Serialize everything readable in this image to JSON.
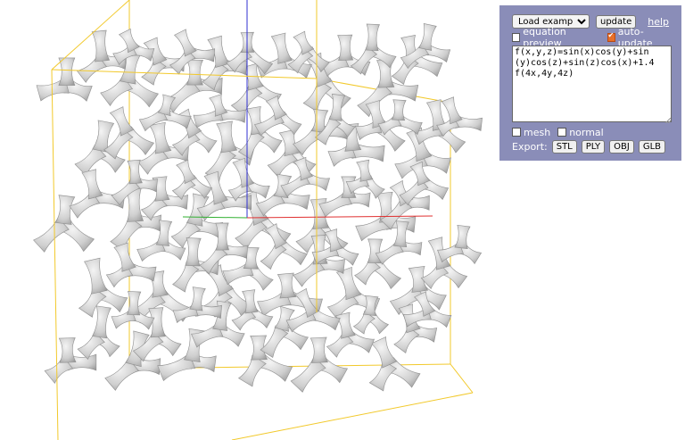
{
  "controls": {
    "load_select": "Load example...",
    "update_label": "update",
    "help_label": "help",
    "equation_preview_label": "equation preview",
    "equation_preview_checked": false,
    "auto_update_label": "auto-update",
    "auto_update_checked": true,
    "equation": "f(x,y,z)=sin(x)cos(y)+sin\n(y)cos(z)+sin(z)cos(x)+1.4\nf(4x,4y,4z)",
    "mesh_label": "mesh",
    "normal_label": "normal",
    "export_label": "Export:",
    "export_buttons": [
      "STL",
      "PLY",
      "OBJ",
      "GLB"
    ]
  },
  "colors": {
    "panel_bg": "#8a8db8",
    "bbox": "#f2c92b",
    "axis_x": "#e03030",
    "axis_y": "#30b030",
    "axis_z": "#2f2fd0",
    "surface": "#d2d2d2"
  }
}
